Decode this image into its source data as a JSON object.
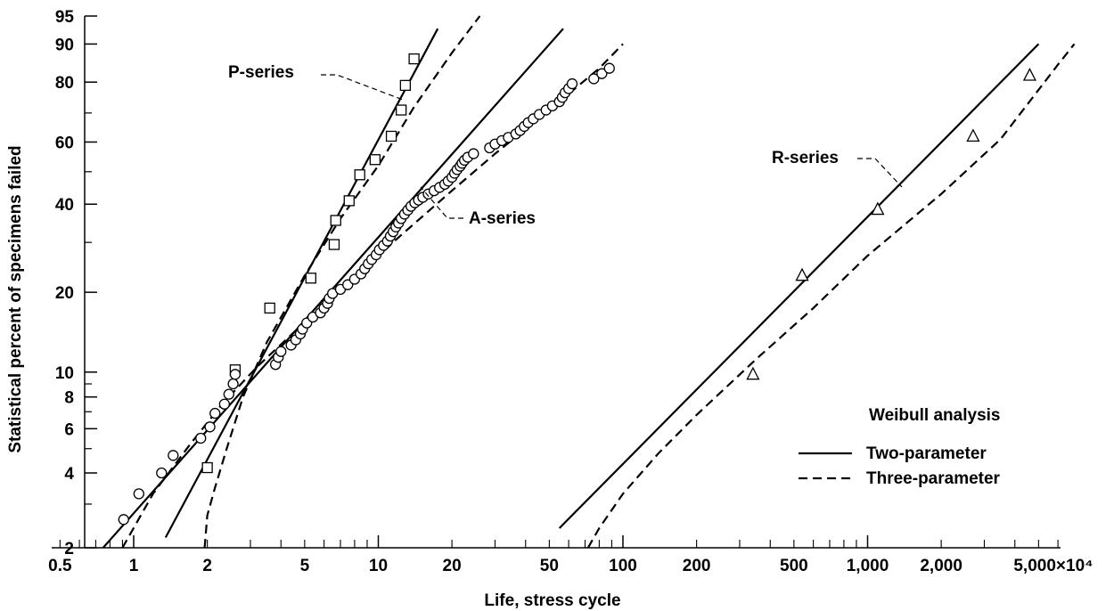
{
  "chart_data": {
    "type": "scatter",
    "title": "",
    "xlabel": "Life, stress cycle",
    "ylabel": "Statistical percent of specimens failed",
    "x_scale": "log",
    "y_scale": "weibull",
    "xlim": [
      0.5,
      7000
    ],
    "ylim": [
      2,
      95
    ],
    "x_tick_labels": [
      {
        "value": 0.5,
        "label": "0.5"
      },
      {
        "value": 1,
        "label": "1"
      },
      {
        "value": 2,
        "label": "2"
      },
      {
        "value": 5,
        "label": "5"
      },
      {
        "value": 10,
        "label": "10"
      },
      {
        "value": 20,
        "label": "20"
      },
      {
        "value": 50,
        "label": "50"
      },
      {
        "value": 100,
        "label": "100"
      },
      {
        "value": 200,
        "label": "200"
      },
      {
        "value": 500,
        "label": "500"
      },
      {
        "value": 1000,
        "label": "1,000"
      },
      {
        "value": 2000,
        "label": "2,000"
      },
      {
        "value": 5000,
        "label": "5,000×10⁴"
      }
    ],
    "y_tick_labels": [
      {
        "value": 2,
        "label": "2"
      },
      {
        "value": 4,
        "label": "4"
      },
      {
        "value": 6,
        "label": "6"
      },
      {
        "value": 8,
        "label": "8"
      },
      {
        "value": 10,
        "label": "10"
      },
      {
        "value": 20,
        "label": "20"
      },
      {
        "value": 40,
        "label": "40"
      },
      {
        "value": 60,
        "label": "60"
      },
      {
        "value": 80,
        "label": "80"
      },
      {
        "value": 90,
        "label": "90"
      },
      {
        "value": 95,
        "label": "95"
      }
    ],
    "y_minor_ticks": [
      3,
      5,
      7,
      9,
      30,
      50,
      70
    ],
    "grid": false,
    "legend": {
      "title": "Weibull analysis",
      "position": "bottom-right",
      "entries": [
        {
          "label": "Two-parameter",
          "style": "solid"
        },
        {
          "label": "Three-parameter",
          "style": "dashed"
        }
      ]
    },
    "series": [
      {
        "name": "P-series",
        "marker": "square",
        "points": [
          [
            2.0,
            4.2
          ],
          [
            2.6,
            10.2
          ],
          [
            3.6,
            17.5
          ],
          [
            5.3,
            22.5
          ],
          [
            6.6,
            29.5
          ],
          [
            6.7,
            35.5
          ],
          [
            7.6,
            41
          ],
          [
            8.4,
            49
          ],
          [
            9.7,
            54
          ],
          [
            11.3,
            62
          ],
          [
            12.4,
            71
          ],
          [
            12.9,
            79
          ],
          [
            14.0,
            86.5
          ]
        ],
        "fit_two_parameter": [
          [
            1.35,
            2.2
          ],
          [
            17.5,
            93
          ]
        ],
        "fit_three_parameter": [
          [
            1.95,
            2.0
          ],
          [
            2.0,
            2.7
          ],
          [
            2.15,
            3.5
          ],
          [
            2.4,
            5.0
          ],
          [
            2.8,
            8.0
          ],
          [
            3.5,
            13
          ],
          [
            5.0,
            23
          ],
          [
            7.0,
            36
          ],
          [
            10,
            52
          ],
          [
            14,
            72
          ],
          [
            20,
            88
          ],
          [
            26,
            95
          ]
        ]
      },
      {
        "name": "A-series",
        "marker": "circle",
        "points": [
          [
            0.91,
            2.6
          ],
          [
            1.05,
            3.3
          ],
          [
            1.3,
            4.0
          ],
          [
            1.45,
            4.7
          ],
          [
            1.88,
            5.5
          ],
          [
            2.05,
            6.1
          ],
          [
            2.15,
            6.9
          ],
          [
            2.35,
            7.5
          ],
          [
            2.45,
            8.2
          ],
          [
            2.55,
            9.0
          ],
          [
            2.6,
            9.8
          ],
          [
            3.8,
            10.7
          ],
          [
            3.9,
            11.4
          ],
          [
            4.0,
            12.0
          ],
          [
            4.4,
            12.7
          ],
          [
            4.6,
            13.3
          ],
          [
            4.8,
            14.0
          ],
          [
            4.9,
            14.6
          ],
          [
            5.1,
            15.4
          ],
          [
            5.4,
            16.2
          ],
          [
            5.8,
            16.8
          ],
          [
            6.0,
            17.5
          ],
          [
            6.2,
            18.2
          ],
          [
            6.3,
            19.0
          ],
          [
            6.5,
            19.8
          ],
          [
            7.0,
            20.5
          ],
          [
            7.5,
            21.3
          ],
          [
            8.0,
            22.3
          ],
          [
            8.5,
            23.3
          ],
          [
            8.8,
            24.3
          ],
          [
            9.1,
            25.3
          ],
          [
            9.4,
            26.2
          ],
          [
            9.8,
            27.2
          ],
          [
            10.1,
            28.3
          ],
          [
            10.5,
            29.3
          ],
          [
            10.9,
            30.3
          ],
          [
            11.2,
            31.5
          ],
          [
            11.5,
            32.6
          ],
          [
            11.8,
            33.8
          ],
          [
            12.1,
            34.8
          ],
          [
            12.4,
            36.0
          ],
          [
            12.8,
            37.2
          ],
          [
            13.2,
            38.3
          ],
          [
            13.6,
            39.4
          ],
          [
            14.1,
            40.4
          ],
          [
            14.6,
            41.2
          ],
          [
            15.2,
            42.0
          ],
          [
            16.0,
            43.0
          ],
          [
            16.9,
            44.0
          ],
          [
            17.8,
            45.0
          ],
          [
            18.7,
            46.0
          ],
          [
            19.3,
            47.0
          ],
          [
            20.0,
            48.2
          ],
          [
            20.5,
            49.5
          ],
          [
            21.0,
            50.7
          ],
          [
            21.6,
            51.8
          ],
          [
            22.0,
            52.8
          ],
          [
            22.5,
            53.8
          ],
          [
            23.2,
            54.8
          ],
          [
            24.5,
            56.0
          ],
          [
            28.5,
            58.0
          ],
          [
            30.0,
            59.3
          ],
          [
            32.0,
            60.5
          ],
          [
            34.0,
            61.6
          ],
          [
            36.5,
            62.8
          ],
          [
            38.0,
            64.0
          ],
          [
            39.5,
            65.4
          ],
          [
            41.0,
            66.7
          ],
          [
            43.0,
            68.0
          ],
          [
            45.5,
            69.5
          ],
          [
            48.5,
            71.0
          ],
          [
            51.5,
            72.4
          ],
          [
            55.0,
            73.8
          ],
          [
            56.5,
            75.2
          ],
          [
            58.0,
            76.7
          ],
          [
            60.0,
            78.0
          ],
          [
            62.0,
            79.5
          ],
          [
            76.0,
            81.0
          ],
          [
            82.0,
            82.5
          ],
          [
            88.0,
            84.0
          ]
        ],
        "fit_two_parameter": [
          [
            0.75,
            2.0
          ],
          [
            57,
            93
          ]
        ],
        "fit_three_parameter": [
          [
            0.9,
            2.0
          ],
          [
            1.2,
            3.3
          ],
          [
            1.7,
            5.2
          ],
          [
            2.3,
            7.5
          ],
          [
            3.2,
            10.5
          ],
          [
            5.0,
            15.5
          ],
          [
            8,
            22.5
          ],
          [
            12,
            31
          ],
          [
            20,
            44
          ],
          [
            30,
            56
          ],
          [
            50,
            71
          ],
          [
            80,
            84
          ],
          [
            100,
            90
          ]
        ]
      },
      {
        "name": "R-series",
        "marker": "triangle",
        "points": [
          [
            340,
            9.8
          ],
          [
            540,
            23.0
          ],
          [
            1100,
            38.5
          ],
          [
            2700,
            62.0
          ],
          [
            4600,
            82.0
          ]
        ],
        "fit_two_parameter": [
          [
            55,
            2.4
          ],
          [
            5000,
            90
          ]
        ],
        "fit_three_parameter": [
          [
            72,
            2.0
          ],
          [
            80,
            2.4
          ],
          [
            100,
            3.3
          ],
          [
            140,
            4.8
          ],
          [
            200,
            6.8
          ],
          [
            350,
            11.2
          ],
          [
            600,
            17.5
          ],
          [
            1000,
            27
          ],
          [
            2000,
            43
          ],
          [
            3500,
            61
          ],
          [
            6000,
            85
          ],
          [
            7000,
            90
          ]
        ]
      }
    ],
    "annotations": [
      {
        "text": "P-series",
        "series": "P-series"
      },
      {
        "text": "A-series",
        "series": "A-series"
      },
      {
        "text": "R-series",
        "series": "R-series"
      }
    ]
  }
}
